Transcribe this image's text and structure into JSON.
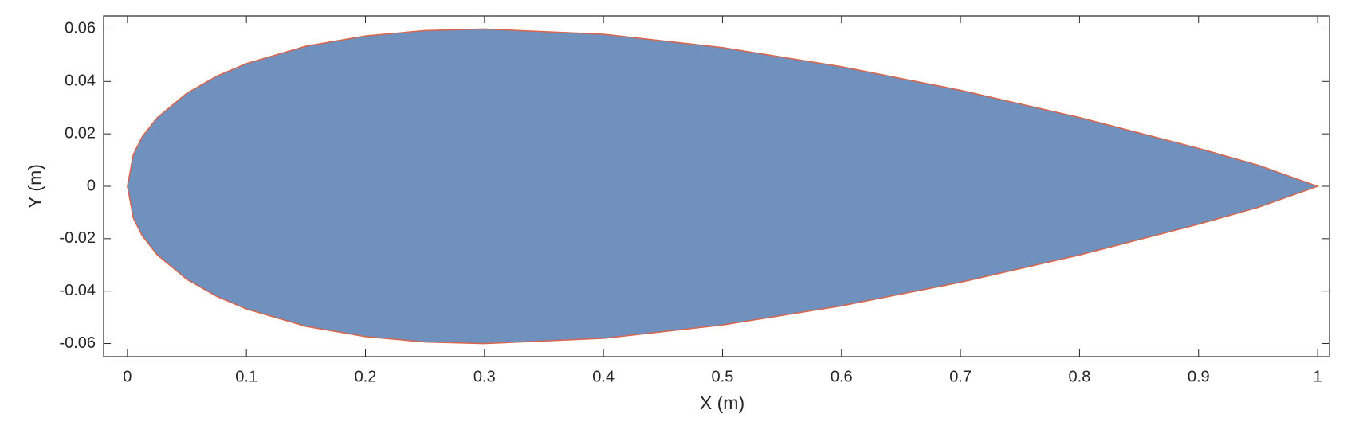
{
  "chart_data": {
    "type": "area",
    "x_label": "X (m)",
    "y_label": "Y (m)",
    "x": [
      1,
      0.95,
      0.9,
      0.8,
      0.7,
      0.6,
      0.5,
      0.4,
      0.3,
      0.25,
      0.2,
      0.15,
      0.1,
      0.075,
      0.05,
      0.025,
      0.0125,
      0.005,
      0,
      0.005,
      0.0125,
      0.025,
      0.05,
      0.075,
      0.1,
      0.15,
      0.2,
      0.25,
      0.3,
      0.4,
      0.5,
      0.6,
      0.7,
      0.8,
      0.9,
      0.95,
      1
    ],
    "values": [
      0,
      0.00807,
      0.01448,
      0.02623,
      0.03664,
      0.04563,
      0.05294,
      0.05803,
      0.06002,
      0.05941,
      0.05737,
      0.05345,
      0.04683,
      0.042,
      0.03555,
      0.02615,
      0.01894,
      0.0122,
      0,
      -0.0122,
      -0.01894,
      -0.02615,
      -0.03555,
      -0.042,
      -0.04683,
      -0.05345,
      -0.05737,
      -0.05941,
      -0.06002,
      -0.05803,
      -0.05294,
      -0.04563,
      -0.03664,
      -0.02623,
      -0.01448,
      -0.00807,
      0
    ],
    "color": "#7090bd",
    "edge_color": "#d9644a",
    "xlim": [
      -0.02,
      1.01
    ],
    "xticks": [
      0,
      0.1,
      0.2,
      0.3,
      0.4,
      0.5,
      0.6,
      0.7,
      0.8,
      0.9,
      1
    ],
    "ylim": [
      -0.065,
      0.065
    ],
    "yticks": [
      -0.06,
      -0.04,
      -0.02,
      0,
      0.02,
      0.04,
      0.06
    ],
    "grid": false
  }
}
